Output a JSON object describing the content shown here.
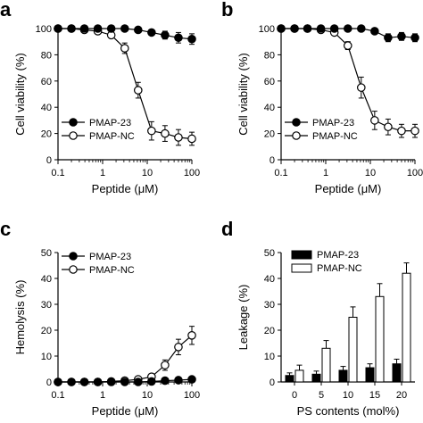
{
  "chart_data": [
    {
      "panel_label": "a",
      "type": "line",
      "xscale": "log",
      "xlabel": "Peptide (μM)",
      "ylabel": "Cell viability (%)",
      "xlim": [
        0.1,
        100
      ],
      "ylim": [
        0,
        100
      ],
      "xticks": [
        "0.1",
        "1",
        "10",
        "100"
      ],
      "yticks": [
        "0",
        "20",
        "40",
        "60",
        "80",
        "100"
      ],
      "legend_position": "bottom-left",
      "series": [
        {
          "name": "PMAP-23",
          "marker": "filled-circle",
          "x": [
            0.1,
            0.2,
            0.39,
            0.78,
            1.56,
            3.13,
            6.25,
            12.5,
            25,
            50,
            100
          ],
          "y": [
            100,
            100,
            100,
            100,
            100,
            100,
            99,
            97,
            95,
            93,
            92
          ],
          "err": [
            0,
            0,
            0,
            0,
            0,
            0,
            1,
            2,
            3,
            4,
            4
          ]
        },
        {
          "name": "PMAP-NC",
          "marker": "open-circle",
          "x": [
            0.1,
            0.2,
            0.39,
            0.78,
            1.56,
            3.13,
            6.25,
            12.5,
            25,
            50,
            100
          ],
          "y": [
            100,
            100,
            99,
            98,
            95,
            85,
            53,
            22,
            20,
            17,
            16
          ],
          "err": [
            0,
            0,
            1,
            1,
            2,
            4,
            6,
            7,
            6,
            6,
            5
          ]
        }
      ]
    },
    {
      "panel_label": "b",
      "type": "line",
      "xscale": "log",
      "xlabel": "Peptide (μM)",
      "ylabel": "Cell viability (%)",
      "xlim": [
        0.1,
        100
      ],
      "ylim": [
        0,
        100
      ],
      "xticks": [
        "0.1",
        "1",
        "10",
        "100"
      ],
      "yticks": [
        "0",
        "20",
        "40",
        "60",
        "80",
        "100"
      ],
      "legend_position": "bottom-left",
      "series": [
        {
          "name": "PMAP-23",
          "marker": "filled-circle",
          "x": [
            0.1,
            0.2,
            0.39,
            0.78,
            1.56,
            3.13,
            6.25,
            12.5,
            25,
            50,
            100
          ],
          "y": [
            100,
            100,
            100,
            100,
            100,
            100,
            100,
            98,
            93,
            94,
            93
          ],
          "err": [
            0,
            0,
            0,
            0,
            0,
            0,
            0,
            1,
            3,
            3,
            3
          ]
        },
        {
          "name": "PMAP-NC",
          "marker": "open-circle",
          "x": [
            0.1,
            0.2,
            0.39,
            0.78,
            1.56,
            3.13,
            6.25,
            12.5,
            25,
            50,
            100
          ],
          "y": [
            100,
            100,
            100,
            99,
            97,
            87,
            55,
            30,
            25,
            22,
            22
          ],
          "err": [
            0,
            0,
            0,
            1,
            1,
            3,
            8,
            7,
            6,
            5,
            5
          ]
        }
      ]
    },
    {
      "panel_label": "c",
      "type": "line",
      "xscale": "log",
      "xlabel": "Peptide (μM)",
      "ylabel": "Hemolysis (%)",
      "xlim": [
        0.1,
        100
      ],
      "ylim": [
        0,
        50
      ],
      "xticks": [
        "0.1",
        "1",
        "10",
        "100"
      ],
      "yticks": [
        "0",
        "10",
        "20",
        "30",
        "40",
        "50"
      ],
      "legend_position": "top-left",
      "series": [
        {
          "name": "PMAP-23",
          "marker": "filled-circle",
          "x": [
            0.1,
            0.2,
            0.39,
            0.78,
            1.56,
            3.13,
            6.25,
            12.5,
            25,
            50,
            100
          ],
          "y": [
            0,
            0,
            0,
            0,
            0,
            0,
            0,
            0.2,
            0.5,
            0.7,
            1.0
          ],
          "err": [
            0,
            0,
            0,
            0,
            0,
            0,
            0,
            0.3,
            0.3,
            0.4,
            0.5
          ]
        },
        {
          "name": "PMAP-NC",
          "marker": "open-circle",
          "x": [
            0.1,
            0.2,
            0.39,
            0.78,
            1.56,
            3.13,
            6.25,
            12.5,
            25,
            50,
            100
          ],
          "y": [
            0,
            0,
            0,
            0,
            0.2,
            0.5,
            1.0,
            2.0,
            6.5,
            13.5,
            18.0
          ],
          "err": [
            0,
            0,
            0,
            0,
            0.3,
            0.4,
            0.5,
            1.0,
            2.0,
            3.0,
            3.5
          ]
        }
      ]
    },
    {
      "panel_label": "d",
      "type": "bar",
      "xlabel": "PS contents (mol%)",
      "ylabel": "Leakage (%)",
      "categories": [
        "0",
        "5",
        "10",
        "15",
        "20"
      ],
      "ylim": [
        0,
        50
      ],
      "yticks": [
        "0",
        "10",
        "20",
        "30",
        "40",
        "50"
      ],
      "legend_position": "top-left",
      "series": [
        {
          "name": "PMAP-23",
          "fill": "#000000",
          "values": [
            2.5,
            3,
            4.5,
            5.5,
            7
          ],
          "err": [
            1,
            1.2,
            1.5,
            1.5,
            1.8
          ]
        },
        {
          "name": "PMAP-NC",
          "fill": "#ffffff",
          "values": [
            4.5,
            13,
            25,
            33,
            42
          ],
          "err": [
            2,
            3,
            4,
            5,
            4
          ]
        }
      ]
    }
  ]
}
